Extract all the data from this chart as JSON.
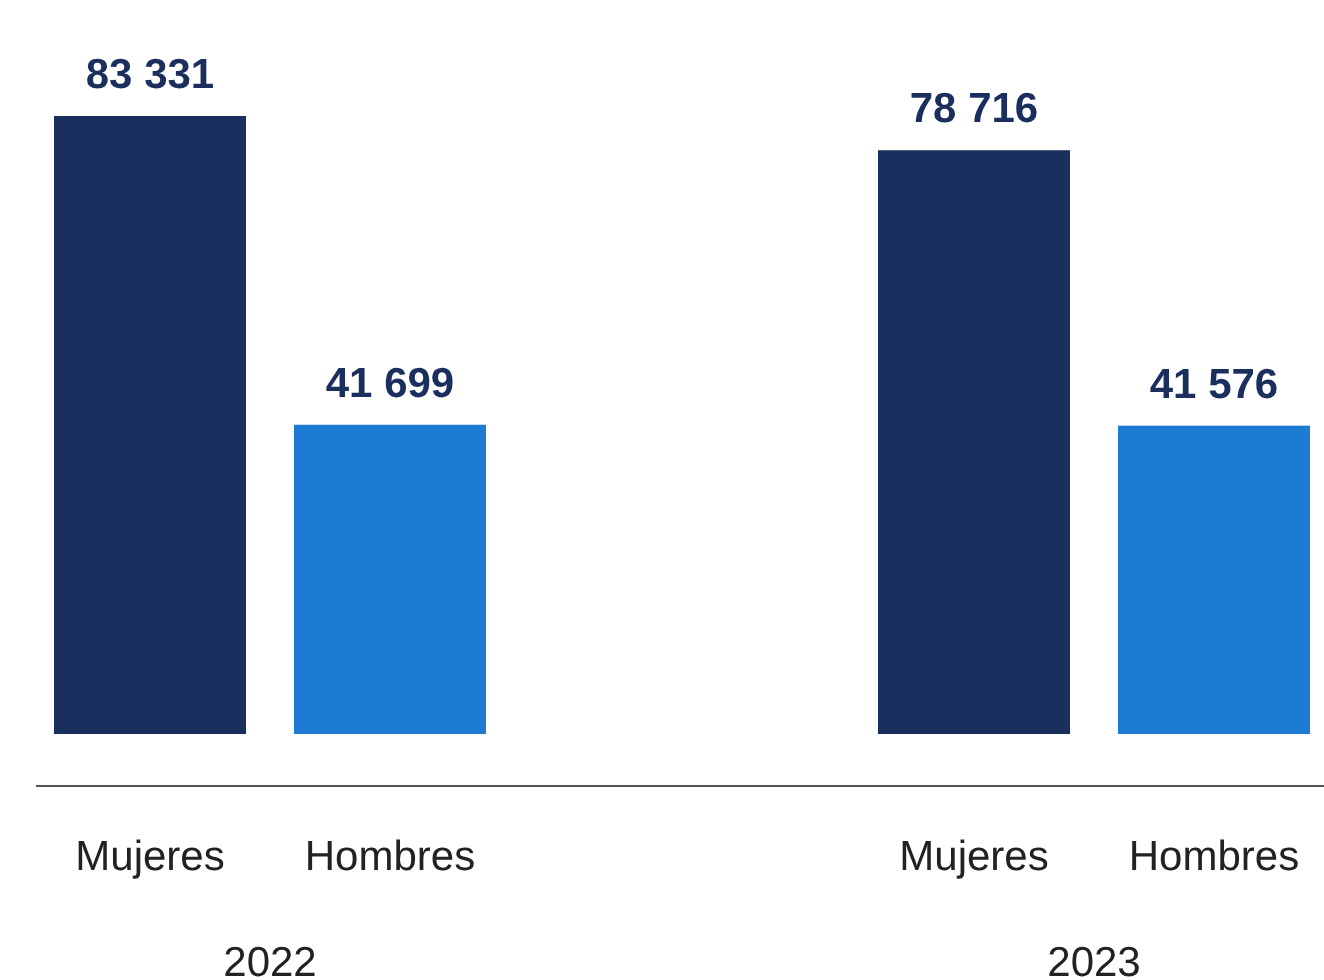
{
  "chart_data": {
    "type": "bar",
    "categories": [
      "2022",
      "2023"
    ],
    "series": [
      {
        "name": "Mujeres",
        "color": "#1b2f5e",
        "values": [
          83331,
          78716
        ],
        "value_labels": [
          "83 331",
          "78 716"
        ]
      },
      {
        "name": "Hombres",
        "color": "#1e7bd3",
        "values": [
          41699,
          41576
        ],
        "value_labels": [
          "41 699",
          "41 576"
        ]
      }
    ]
  }
}
